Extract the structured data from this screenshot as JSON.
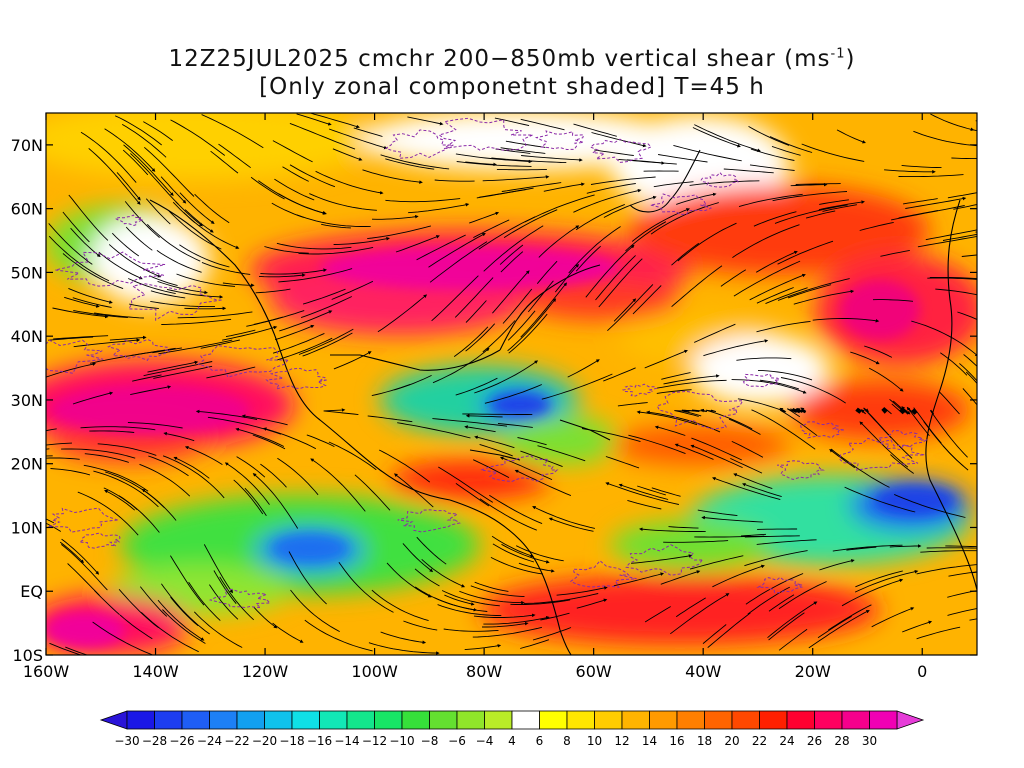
{
  "title": {
    "line1": "12Z25JUL2025 cmchr 200−850mb vertical shear (ms",
    "line1_sup": "-1",
    "line1_end": ")",
    "line2": "[Only zonal componetnt shaded] T=45 h"
  },
  "map": {
    "lon_range": [
      -160,
      10
    ],
    "lat_range": [
      -10,
      75
    ],
    "lat_ticks": [
      {
        "lat": 70,
        "label": "70N"
      },
      {
        "lat": 60,
        "label": "60N"
      },
      {
        "lat": 50,
        "label": "50N"
      },
      {
        "lat": 40,
        "label": "40N"
      },
      {
        "lat": 30,
        "label": "30N"
      },
      {
        "lat": 20,
        "label": "20N"
      },
      {
        "lat": 10,
        "label": "10N"
      },
      {
        "lat": 0,
        "label": "EQ"
      },
      {
        "lat": -10,
        "label": "10S"
      }
    ],
    "lon_ticks": [
      {
        "lon": -160,
        "label": "160W"
      },
      {
        "lon": -140,
        "label": "140W"
      },
      {
        "lon": -120,
        "label": "120W"
      },
      {
        "lon": -100,
        "label": "100W"
      },
      {
        "lon": -80,
        "label": "80W"
      },
      {
        "lon": -60,
        "label": "60W"
      },
      {
        "lon": -40,
        "label": "40W"
      },
      {
        "lon": -20,
        "label": "20W"
      },
      {
        "lon": 0,
        "label": "0"
      }
    ]
  },
  "colorbar": {
    "levels": [
      {
        "label": "−30",
        "color": "#1a17e6"
      },
      {
        "label": "−28",
        "color": "#1d3df0"
      },
      {
        "label": "−26",
        "color": "#1f5ef5"
      },
      {
        "label": "−24",
        "color": "#1d80f5"
      },
      {
        "label": "−22",
        "color": "#12a0f0"
      },
      {
        "label": "−20",
        "color": "#10c2ec"
      },
      {
        "label": "−18",
        "color": "#0fe0e6"
      },
      {
        "label": "−16",
        "color": "#12e8b6"
      },
      {
        "label": "−14",
        "color": "#13e68c"
      },
      {
        "label": "−12",
        "color": "#17e566"
      },
      {
        "label": "−10",
        "color": "#36e03a"
      },
      {
        "label": "−8",
        "color": "#64e030"
      },
      {
        "label": "−6",
        "color": "#90e52a"
      },
      {
        "label": "−4",
        "color": "#b9ec28"
      },
      {
        "label": "4",
        "color": "#ffffff"
      },
      {
        "label": "6",
        "color": "#ffff00"
      },
      {
        "label": "8",
        "color": "#ffe600"
      },
      {
        "label": "10",
        "color": "#ffcd00"
      },
      {
        "label": "12",
        "color": "#ffb400"
      },
      {
        "label": "14",
        "color": "#ff9a00"
      },
      {
        "label": "16",
        "color": "#ff7f00"
      },
      {
        "label": "18",
        "color": "#ff6400"
      },
      {
        "label": "20",
        "color": "#ff4800"
      },
      {
        "label": "22",
        "color": "#ff2000"
      },
      {
        "label": "24",
        "color": "#ff0030"
      },
      {
        "label": "26",
        "color": "#ff0060"
      },
      {
        "label": "28",
        "color": "#f5008c"
      },
      {
        "label": "30",
        "color": "#f000b4"
      }
    ],
    "low_arrow_color": "#2a14d8",
    "high_arrow_color": "#e63cd8"
  },
  "colors": {
    "land_outline": "#000000",
    "contour": "#8a2aa8",
    "streamline": "#000000"
  }
}
